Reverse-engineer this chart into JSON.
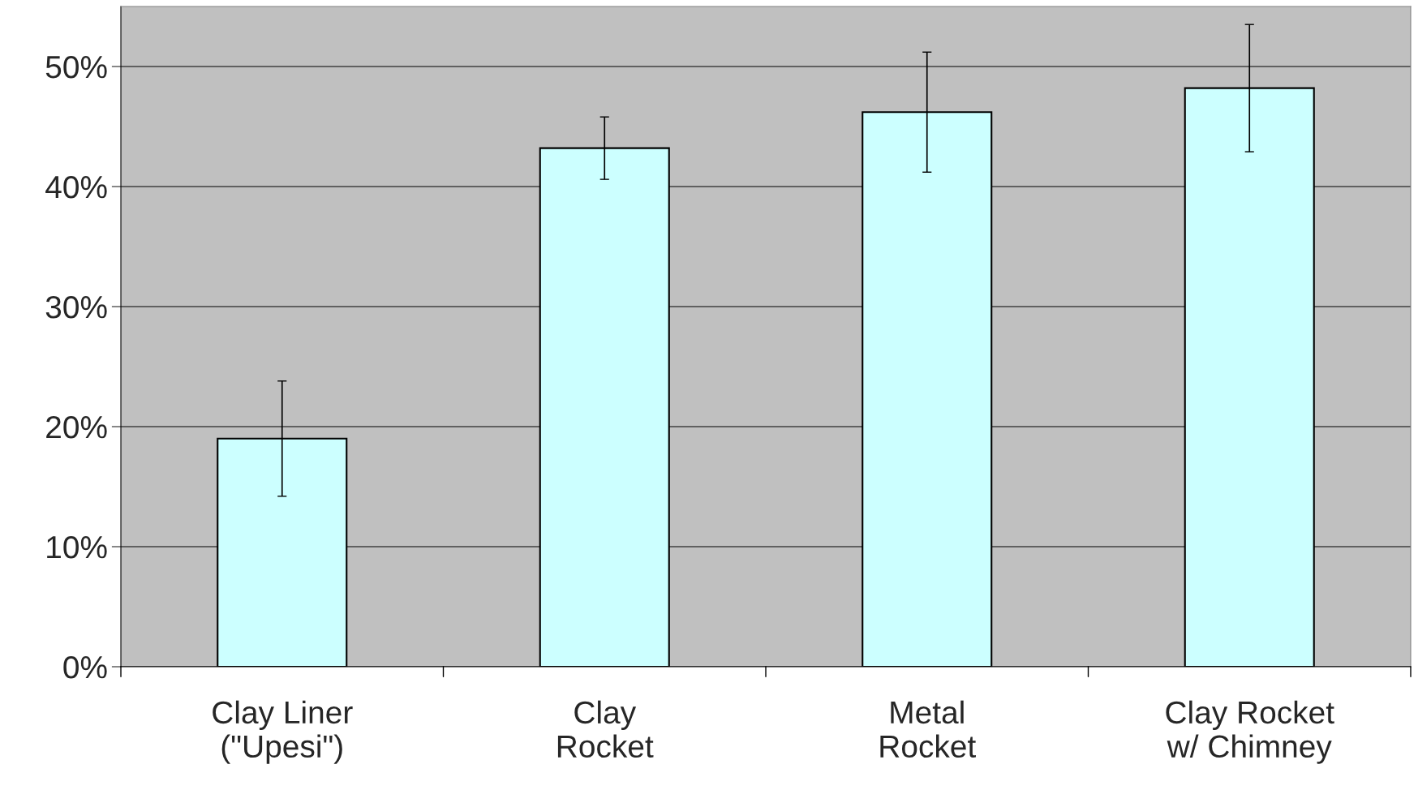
{
  "chart_data": {
    "type": "bar",
    "categories": [
      "Clay Liner\n(\"Upesi\")",
      "Clay\nRocket",
      "Metal\nRocket",
      "Clay Rocket\nw/ Chimney"
    ],
    "values": [
      19.0,
      43.2,
      46.2,
      48.2
    ],
    "errors": [
      4.8,
      2.6,
      5.0,
      5.3
    ],
    "color": "#ccffff",
    "ylim": [
      0,
      55
    ],
    "yticks": [
      {
        "value": 0,
        "label": "0%"
      },
      {
        "value": 10,
        "label": "10%"
      },
      {
        "value": 20,
        "label": "20%"
      },
      {
        "value": 30,
        "label": "30%"
      },
      {
        "value": 40,
        "label": "40%"
      },
      {
        "value": 50,
        "label": "50%"
      }
    ],
    "grid": "y",
    "legend": false
  }
}
